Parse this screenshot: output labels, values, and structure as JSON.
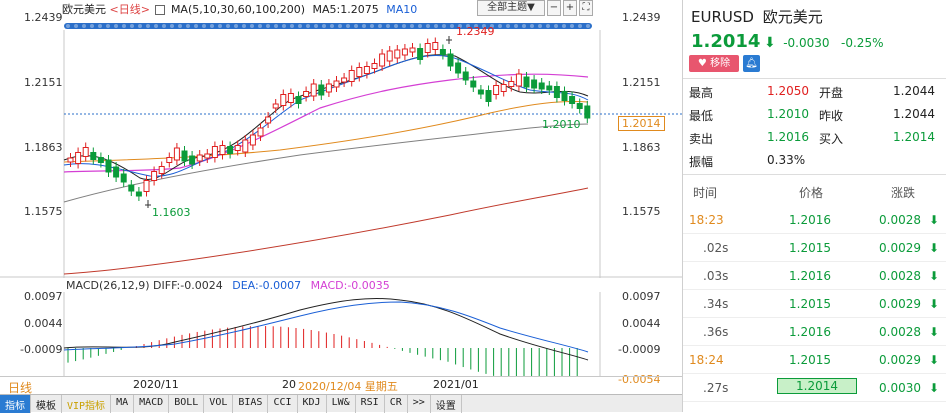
{
  "chart_header": {
    "symbol_name": "欧元美元",
    "period": "<日线>",
    "ma_label": "MA(5,10,30,60,100,200)",
    "ma5": "MA5:1.2075",
    "ma10": "MA10",
    "theme_button": "全部主题▼"
  },
  "price_axis": {
    "left": [
      "1.2439",
      "1.2151",
      "1.1863",
      "1.1575"
    ],
    "right": [
      "1.2439",
      "1.2151",
      "1.1863",
      "1.1575"
    ],
    "current_price_tag": "1.2014",
    "high_note": "1.2349",
    "low_note": "1.1603",
    "last_note": "1.2010"
  },
  "macd": {
    "label": "MACD(26,12,9)",
    "diff": "DIFF:-0.0024",
    "dea": "DEA:-0.0007",
    "macd": "MACD:-0.0035",
    "left_axis": [
      "0.0097",
      "0.0044",
      "-0.0009"
    ],
    "right_axis": [
      "0.0097",
      "0.0044",
      "-0.0009",
      "-0.0054"
    ]
  },
  "time_axis": {
    "period_label": "日线",
    "labels": [
      "2020/11",
      "20",
      "2020/12/04 星期五",
      "2021/01"
    ]
  },
  "indicator_tabs": [
    "指标",
    "模板",
    "VIP指标",
    "MA",
    "MACD",
    "BOLL",
    "VOL",
    "BIAS",
    "CCI",
    "KDJ",
    "LW&",
    "RSI",
    "CR",
    ">>",
    "设置"
  ],
  "quote": {
    "code": "EURUSD",
    "name": "欧元美元",
    "price": "1.2014",
    "arrow": "⬇",
    "change": "-0.0030",
    "change_pct": "-0.25%",
    "remove_btn": "移除",
    "stats": [
      {
        "l1": "最高",
        "v1": "1.2050",
        "l2": "开盘",
        "v2": "1.2044"
      },
      {
        "l1": "最低",
        "v1": "1.2010",
        "l2": "昨收",
        "v2": "1.2044"
      },
      {
        "l1": "卖出",
        "v1": "1.2016",
        "l2": "买入",
        "v2": "1.2014"
      }
    ],
    "amplitude_label": "振幅",
    "amplitude": "0.33%"
  },
  "trades": {
    "headers": [
      "时间",
      "价格",
      "涨跌"
    ],
    "rows": [
      {
        "time": "18:23",
        "price": "1.2016",
        "chg": "0.0028"
      },
      {
        "time": ".02s",
        "price": "1.2015",
        "chg": "0.0029"
      },
      {
        "time": ".03s",
        "price": "1.2016",
        "chg": "0.0028"
      },
      {
        "time": ".34s",
        "price": "1.2015",
        "chg": "0.0029"
      },
      {
        "time": ".36s",
        "price": "1.2016",
        "chg": "0.0028"
      },
      {
        "time": "18:24",
        "price": "1.2015",
        "chg": "0.0029"
      },
      {
        "time": ".27s",
        "price": "1.2014",
        "chg": "0.0030"
      }
    ]
  },
  "colors": {
    "up": "#e02020",
    "down": "#0b9b3a",
    "ma_pink": "#d43fd4",
    "ma_orange": "#e08a1e",
    "ma_grey": "#808080",
    "ma_red": "#c0392b"
  }
}
